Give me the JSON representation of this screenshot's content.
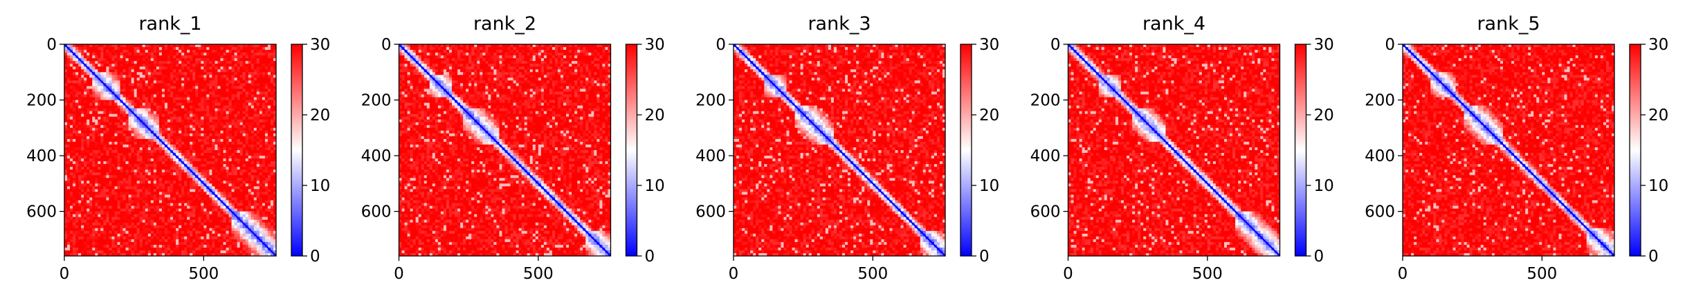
{
  "chart_data": [
    {
      "type": "heatmap",
      "title": "rank_1",
      "n": 760,
      "xlim": [
        0,
        760
      ],
      "ylim": [
        760,
        0
      ],
      "xticks": [
        0,
        500
      ],
      "xtick_labels": [
        "0",
        "500"
      ],
      "yticks": [
        0,
        200,
        400,
        600
      ],
      "ytick_labels": [
        "0",
        "200",
        "400",
        "600"
      ],
      "colorbar": {
        "range": [
          0,
          30
        ],
        "ticks": [
          0,
          10,
          20,
          30
        ],
        "tick_labels": [
          "0",
          "10",
          "20",
          "30"
        ],
        "colors": [
          "#0000ff",
          "#ffffff",
          "#ff0000"
        ]
      },
      "domains": [
        [
          100,
          200
        ],
        [
          230,
          340
        ],
        [
          600,
          760
        ]
      ]
    },
    {
      "type": "heatmap",
      "title": "rank_2",
      "n": 760,
      "xlim": [
        0,
        760
      ],
      "ylim": [
        760,
        0
      ],
      "xticks": [
        0,
        500
      ],
      "xtick_labels": [
        "0",
        "500"
      ],
      "yticks": [
        0,
        200,
        400,
        600
      ],
      "ytick_labels": [
        "0",
        "200",
        "400",
        "600"
      ],
      "colorbar": {
        "range": [
          0,
          30
        ],
        "ticks": [
          0,
          10,
          20,
          30
        ],
        "tick_labels": [
          "0",
          "10",
          "20",
          "30"
        ],
        "colors": [
          "#0000ff",
          "#ffffff",
          "#ff0000"
        ]
      },
      "domains": [
        [
          110,
          190
        ],
        [
          230,
          360
        ],
        [
          670,
          760
        ]
      ]
    },
    {
      "type": "heatmap",
      "title": "rank_3",
      "n": 760,
      "xlim": [
        0,
        760
      ],
      "ylim": [
        760,
        0
      ],
      "xticks": [
        0,
        500
      ],
      "xtick_labels": [
        "0",
        "500"
      ],
      "yticks": [
        0,
        200,
        400,
        600
      ],
      "ytick_labels": [
        "0",
        "200",
        "400",
        "600"
      ],
      "colorbar": {
        "range": [
          0,
          30
        ],
        "ticks": [
          0,
          10,
          20,
          30
        ],
        "tick_labels": [
          "0",
          "10",
          "20",
          "30"
        ],
        "colors": [
          "#0000ff",
          "#ffffff",
          "#ff0000"
        ]
      },
      "domains": [
        [
          110,
          190
        ],
        [
          220,
          360
        ],
        [
          670,
          760
        ]
      ]
    },
    {
      "type": "heatmap",
      "title": "rank_4",
      "n": 760,
      "xlim": [
        0,
        760
      ],
      "ylim": [
        760,
        0
      ],
      "xticks": [
        0,
        500
      ],
      "xtick_labels": [
        "0",
        "500"
      ],
      "yticks": [
        0,
        200,
        400,
        600
      ],
      "ytick_labels": [
        "0",
        "200",
        "400",
        "600"
      ],
      "colorbar": {
        "range": [
          0,
          30
        ],
        "ticks": [
          0,
          10,
          20,
          30
        ],
        "tick_labels": [
          "0",
          "10",
          "20",
          "30"
        ],
        "colors": [
          "#0000ff",
          "#ffffff",
          "#ff0000"
        ]
      },
      "domains": [
        [
          110,
          190
        ],
        [
          230,
          350
        ],
        [
          600,
          760
        ]
      ]
    },
    {
      "type": "heatmap",
      "title": "rank_5",
      "n": 760,
      "xlim": [
        0,
        760
      ],
      "ylim": [
        760,
        0
      ],
      "xticks": [
        0,
        500
      ],
      "xtick_labels": [
        "0",
        "500"
      ],
      "yticks": [
        0,
        200,
        400,
        600
      ],
      "ytick_labels": [
        "0",
        "200",
        "400",
        "600"
      ],
      "colorbar": {
        "range": [
          0,
          30
        ],
        "ticks": [
          0,
          10,
          20,
          30
        ],
        "tick_labels": [
          "0",
          "10",
          "20",
          "30"
        ],
        "colors": [
          "#0000ff",
          "#ffffff",
          "#ff0000"
        ]
      },
      "domains": [
        [
          100,
          190
        ],
        [
          220,
          360
        ],
        [
          660,
          760
        ]
      ]
    }
  ]
}
